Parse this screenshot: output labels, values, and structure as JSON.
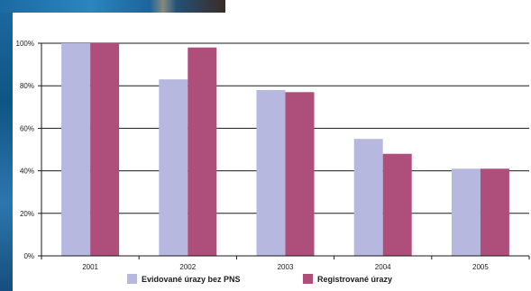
{
  "chart_data": {
    "type": "bar",
    "categories": [
      "2001",
      "2002",
      "2003",
      "2004",
      "2005"
    ],
    "series": [
      {
        "name": "Evidované úrazy bez PNS",
        "color": "#b6b8e0",
        "values": [
          100,
          83,
          78,
          55,
          41
        ]
      },
      {
        "name": "Registrované úrazy",
        "color": "#ad4f7a",
        "values": [
          100,
          98,
          77,
          48,
          41
        ]
      }
    ],
    "ylim": [
      0,
      100
    ],
    "yticks": [
      0,
      20,
      40,
      60,
      80,
      100
    ],
    "ytick_labels": [
      "0%",
      "20%",
      "40%",
      "60%",
      "80%",
      "100%"
    ],
    "grid": true,
    "legend_position": "bottom",
    "title": "",
    "xlabel": "",
    "ylabel": ""
  }
}
